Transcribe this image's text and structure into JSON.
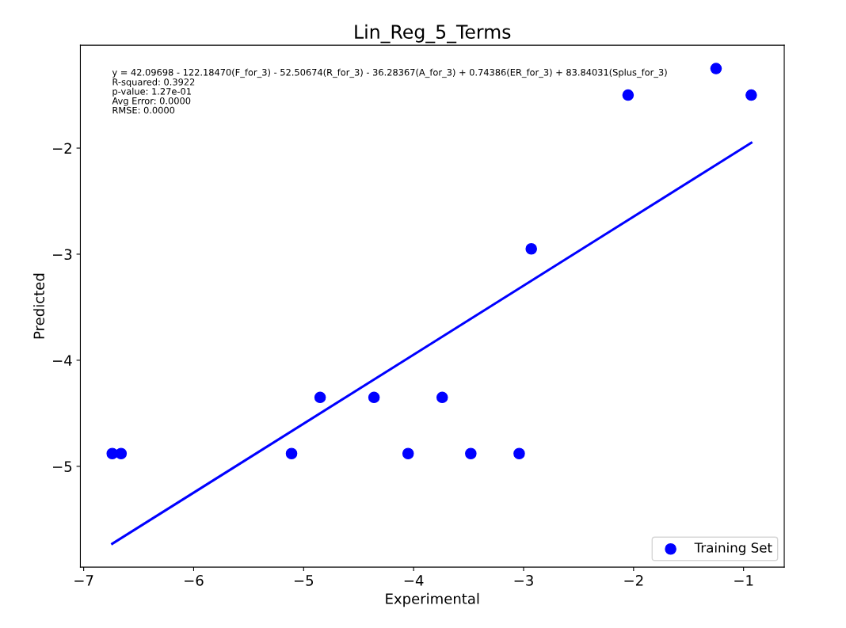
{
  "chart_data": {
    "type": "scatter",
    "title": "Lin_Reg_5_Terms",
    "xlabel": "Experimental",
    "ylabel": "Predicted",
    "annotations": [
      "y = 42.09698 - 122.18470(F_for_3) - 52.50674(R_for_3) - 36.28367(A_for_3) + 0.74386(ER_for_3) + 83.84031(Splus_for_3)",
      "R-squared: 0.3922",
      "p-value: 1.27e-01",
      "Avg Error: 0.0000",
      "RMSE: 0.0000"
    ],
    "series": [
      {
        "name": "Training Set",
        "marker": "circle",
        "color": "#0000ff",
        "x": [
          -6.74,
          -6.66,
          -5.11,
          -4.85,
          -4.36,
          -4.05,
          -3.74,
          -3.48,
          -3.04,
          -2.93,
          -2.05,
          -1.25,
          -0.93
        ],
        "values": [
          -4.88,
          -4.88,
          -4.88,
          -4.35,
          -4.35,
          -4.88,
          -4.35,
          -4.88,
          -4.88,
          -2.95,
          -1.5,
          -1.25,
          -1.5
        ]
      },
      {
        "type": "line",
        "marker": "none",
        "color": "#0000ff",
        "x": [
          -6.74,
          -0.93
        ],
        "values": [
          -5.73,
          -1.95
        ]
      }
    ],
    "xlim": [
      -7.03,
      -0.63
    ],
    "ylim": [
      -5.95,
      -1.03
    ],
    "xticks": [
      {
        "value": -7,
        "label": "−7"
      },
      {
        "value": -6,
        "label": "−6"
      },
      {
        "value": -5,
        "label": "−5"
      },
      {
        "value": -4,
        "label": "−4"
      },
      {
        "value": -3,
        "label": "−3"
      },
      {
        "value": -2,
        "label": "−2"
      },
      {
        "value": -1,
        "label": "−1"
      }
    ],
    "yticks": [
      {
        "value": -5,
        "label": "−5"
      },
      {
        "value": -4,
        "label": "−4"
      },
      {
        "value": -3,
        "label": "−3"
      },
      {
        "value": -2,
        "label": "−2"
      }
    ],
    "legend": "lower right"
  }
}
